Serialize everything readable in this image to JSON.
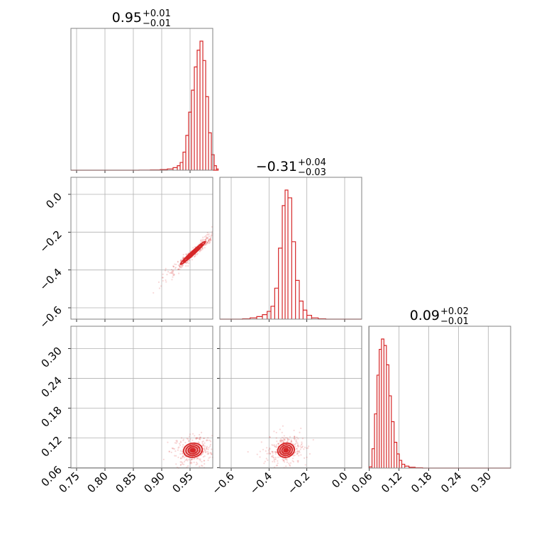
{
  "chart_data": {
    "type": "corner",
    "color": "#d62728",
    "parameters": [
      {
        "median": "0.95",
        "plus": "+0.01",
        "minus": "−0.01",
        "range": [
          0.74,
          0.99
        ],
        "ticks": [
          0.75,
          0.8,
          0.85,
          0.9,
          0.95
        ],
        "tick_labels": [
          "0.75",
          "0.80",
          "0.85",
          "0.90",
          "0.95"
        ]
      },
      {
        "median": "−0.31",
        "plus": "+0.04",
        "minus": "−0.03",
        "range": [
          -0.66,
          0.09
        ],
        "ticks": [
          -0.6,
          -0.4,
          -0.2,
          0.0
        ],
        "tick_labels": [
          "−0.6",
          "−0.4",
          "−0.2",
          "0.0"
        ]
      },
      {
        "median": "0.09",
        "plus": "+0.02",
        "minus": "−0.01",
        "range": [
          0.059,
          0.345
        ],
        "ticks": [
          0.06,
          0.12,
          0.18,
          0.24,
          0.3
        ],
        "tick_labels": [
          "0.06",
          "0.12",
          "0.18",
          "0.24",
          "0.30"
        ]
      }
    ],
    "histograms": [
      {
        "param": 0,
        "bins": [
          [
            0.87,
            0.001
          ],
          [
            0.89,
            0.002
          ],
          [
            0.905,
            0.005
          ],
          [
            0.915,
            0.01
          ],
          [
            0.925,
            0.02
          ],
          [
            0.93,
            0.035
          ],
          [
            0.935,
            0.06
          ],
          [
            0.94,
            0.14
          ],
          [
            0.945,
            0.27
          ],
          [
            0.95,
            0.45
          ],
          [
            0.955,
            0.62
          ],
          [
            0.96,
            0.8
          ],
          [
            0.965,
            0.93
          ],
          [
            0.97,
            1.0
          ],
          [
            0.975,
            0.85
          ],
          [
            0.98,
            0.57
          ],
          [
            0.985,
            0.29
          ],
          [
            0.99,
            0.12
          ],
          [
            0.995,
            0.035
          ],
          [
            0.998,
            0.01
          ]
        ]
      },
      {
        "param": 1,
        "bins": [
          [
            -0.52,
            0.003
          ],
          [
            -0.48,
            0.01
          ],
          [
            -0.45,
            0.02
          ],
          [
            -0.42,
            0.035
          ],
          [
            -0.4,
            0.06
          ],
          [
            -0.38,
            0.1
          ],
          [
            -0.36,
            0.24
          ],
          [
            -0.34,
            0.55
          ],
          [
            -0.32,
            0.88
          ],
          [
            -0.31,
            1.0
          ],
          [
            -0.29,
            0.94
          ],
          [
            -0.27,
            0.6
          ],
          [
            -0.25,
            0.3
          ],
          [
            -0.23,
            0.14
          ],
          [
            -0.21,
            0.07
          ],
          [
            -0.19,
            0.03
          ],
          [
            -0.16,
            0.01
          ],
          [
            -0.12,
            0.003
          ]
        ]
      },
      {
        "param": 2,
        "bins": [
          [
            0.063,
            0.01
          ],
          [
            0.068,
            0.15
          ],
          [
            0.073,
            0.42
          ],
          [
            0.078,
            0.72
          ],
          [
            0.082,
            0.92
          ],
          [
            0.087,
            1.0
          ],
          [
            0.092,
            0.95
          ],
          [
            0.097,
            0.8
          ],
          [
            0.102,
            0.56
          ],
          [
            0.107,
            0.36
          ],
          [
            0.113,
            0.2
          ],
          [
            0.118,
            0.11
          ],
          [
            0.123,
            0.06
          ],
          [
            0.128,
            0.03
          ],
          [
            0.135,
            0.015
          ],
          [
            0.145,
            0.006
          ],
          [
            0.16,
            0.002
          ]
        ]
      }
    ],
    "joint": [
      {
        "x_param": 0,
        "y_param": 1,
        "center": [
          0.955,
          -0.31
        ],
        "spread": [
          0.02,
          0.055
        ],
        "correlation": 0.98
      },
      {
        "x_param": 0,
        "y_param": 2,
        "center": [
          0.955,
          0.095
        ],
        "spread": [
          0.015,
          0.013
        ],
        "correlation": 0.1
      },
      {
        "x_param": 1,
        "y_param": 2,
        "center": [
          -0.31,
          0.095
        ],
        "spread": [
          0.04,
          0.013
        ],
        "correlation": 0.1
      }
    ],
    "contour_levels": [
      0.5,
      1.0,
      1.5,
      2.0
    ],
    "grid": true
  }
}
